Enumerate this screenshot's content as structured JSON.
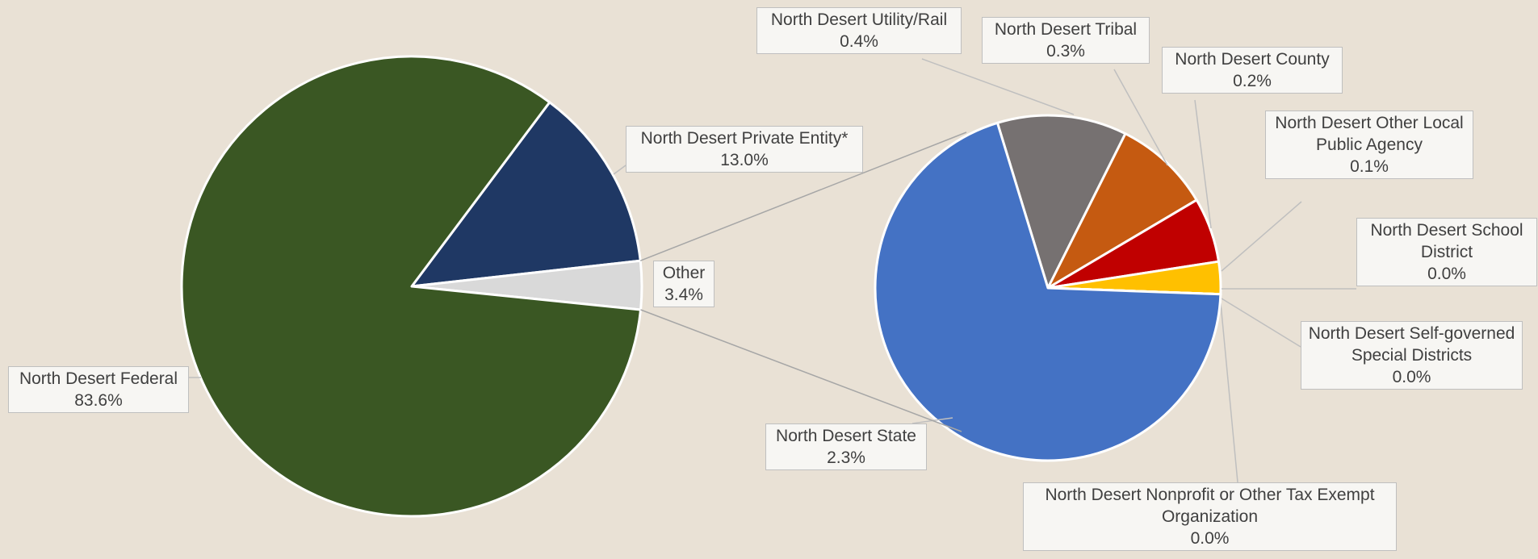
{
  "chart_data": [
    {
      "type": "pie",
      "start_angle": 36.8,
      "categories": [
        "North Desert Private Entity*",
        "Other",
        "North Desert Federal"
      ],
      "values": [
        13.0,
        3.4,
        83.6
      ],
      "value_labels": [
        "13.0%",
        "3.4%",
        "83.6%"
      ],
      "colors": [
        "#1f3864",
        "#d9d9d9",
        "#3a5723"
      ]
    },
    {
      "type": "pie",
      "start_angle": -17,
      "categories": [
        "North Desert Utility/Rail",
        "North Desert Tribal",
        "North Desert County",
        "North Desert Other Local Public Agency",
        "North Desert School District",
        "North Desert Self-governed Special Districts",
        "North Desert Nonprofit or Other Tax Exempt Organization",
        "North Desert State"
      ],
      "values": [
        0.4,
        0.3,
        0.2,
        0.1,
        0.0,
        0.0,
        0.0,
        2.3
      ],
      "value_labels": [
        "0.4%",
        "0.3%",
        "0.2%",
        "0.1%",
        "0.0%",
        "0.0%",
        "0.0%",
        "2.3%"
      ],
      "colors": [
        "#767171",
        "#c55a11",
        "#c00000",
        "#ffc000",
        "#8faadc",
        "#70ad47",
        "#a9d18e",
        "#4472c4"
      ]
    }
  ]
}
